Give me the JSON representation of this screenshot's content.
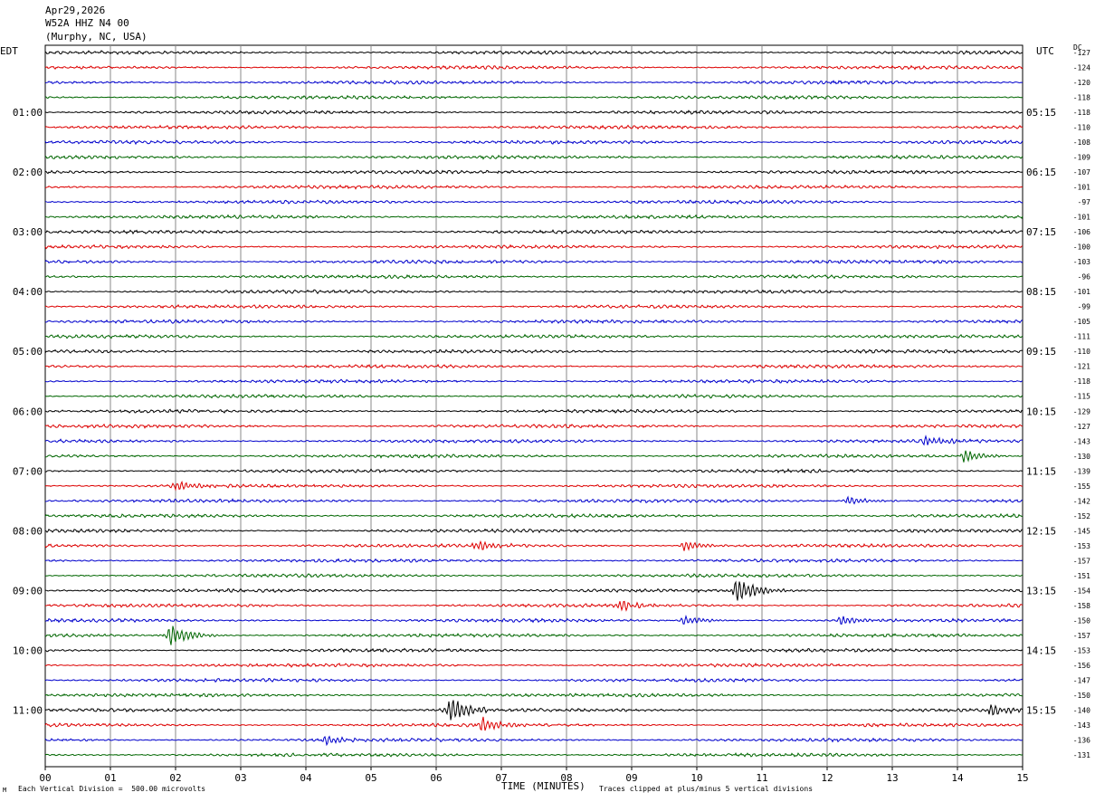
{
  "header": {
    "date": "Apr29,2026",
    "station": "W52A HHZ N4 00",
    "location": "(Murphy, NC, USA)"
  },
  "axis_labels": {
    "left_tz": "EDT",
    "right_tz": "UTC",
    "dc_label": "DC",
    "xlabel": "TIME (MINUTES)",
    "scale_note": "Each Vertical Division =  500.00 microvolts",
    "clip_note": "Traces clipped at plus/minus 5 vertical divisions",
    "corner_mark": "M"
  },
  "chart_data": {
    "type": "line",
    "title": "W52A HHZ N4 00",
    "xlabel": "TIME (MINUTES)",
    "xlim": [
      0,
      15
    ],
    "x_ticks": [
      "00",
      "01",
      "02",
      "03",
      "04",
      "05",
      "06",
      "07",
      "08",
      "09",
      "10",
      "11",
      "12",
      "13",
      "14",
      "15"
    ],
    "grid": true,
    "rows": 48,
    "row_minutes": 15,
    "trace_colors": [
      "#000000",
      "#dd0000",
      "#0000cc",
      "#006600"
    ],
    "left_hour_labels": [
      "01:00",
      "02:00",
      "03:00",
      "04:00",
      "05:00",
      "06:00",
      "07:00",
      "08:00",
      "09:00",
      "10:00",
      "11:00"
    ],
    "right_hour_labels": [
      "05:15",
      "06:15",
      "07:15",
      "08:15",
      "09:15",
      "10:15",
      "11:15",
      "12:15",
      "13:15",
      "14:15",
      "15:15"
    ],
    "dc_offsets": [
      -127,
      -124,
      -120,
      -118,
      -118,
      -110,
      -108,
      -109,
      -107,
      -101,
      -97,
      -101,
      -106,
      -100,
      -103,
      -96,
      -101,
      -99,
      -105,
      -111,
      -110,
      -121,
      -118,
      -115,
      -129,
      -127,
      -143,
      -130,
      -139,
      -155,
      -142,
      -152,
      -145,
      -153,
      -157,
      -151,
      -154,
      -158,
      -150,
      -157,
      -153,
      -156,
      -147,
      -150,
      -140,
      -143,
      -136,
      -131
    ],
    "events": [
      {
        "row": 26,
        "minute": 13.5,
        "strength": 1.3
      },
      {
        "row": 27,
        "minute": 14.1,
        "strength": 1.6
      },
      {
        "row": 29,
        "minute": 2.0,
        "strength": 1.4
      },
      {
        "row": 30,
        "minute": 12.3,
        "strength": 1.2
      },
      {
        "row": 33,
        "minute": 6.6,
        "strength": 1.3
      },
      {
        "row": 33,
        "minute": 9.8,
        "strength": 1.3
      },
      {
        "row": 36,
        "minute": 10.6,
        "strength": 3.5
      },
      {
        "row": 37,
        "minute": 8.8,
        "strength": 1.6
      },
      {
        "row": 38,
        "minute": 9.8,
        "strength": 1.3
      },
      {
        "row": 38,
        "minute": 12.2,
        "strength": 1.2
      },
      {
        "row": 39,
        "minute": 1.9,
        "strength": 3.0
      },
      {
        "row": 44,
        "minute": 6.2,
        "strength": 3.8
      },
      {
        "row": 44,
        "minute": 14.5,
        "strength": 1.6
      },
      {
        "row": 45,
        "minute": 6.7,
        "strength": 1.8
      },
      {
        "row": 46,
        "minute": 4.3,
        "strength": 1.3
      }
    ]
  }
}
